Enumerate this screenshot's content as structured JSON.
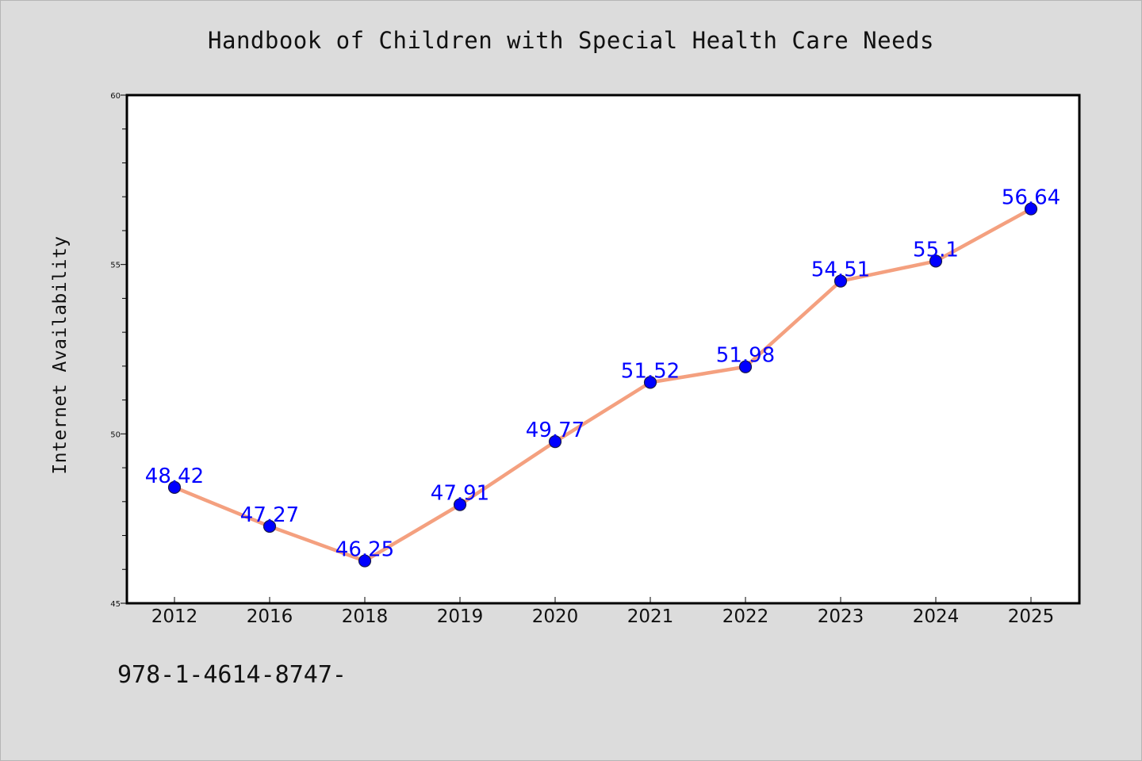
{
  "chart_data": {
    "type": "line",
    "title": "Handbook of Children with Special Health Care Needs",
    "ylabel": "Internet Availability",
    "xlabel": "",
    "categories": [
      "2012",
      "2016",
      "2018",
      "2019",
      "2020",
      "2021",
      "2022",
      "2023",
      "2024",
      "2025"
    ],
    "values": [
      48.42,
      47.27,
      46.25,
      47.91,
      49.77,
      51.52,
      51.98,
      54.51,
      55.1,
      56.64
    ],
    "data_labels": [
      "48.42",
      "47.27",
      "46.25",
      "47.91",
      "49.77",
      "51.52",
      "51.98",
      "54.51",
      "55.1",
      "56.64"
    ],
    "ylim": [
      45,
      60
    ],
    "yticks": [
      "45",
      "50",
      "55",
      "60"
    ],
    "grid": false,
    "legend": "none",
    "colors": {
      "line": "#f4a07f",
      "marker": "#0000ff",
      "marker_edge": "#1a1a4a",
      "label": "#0000ff",
      "plot_bg": "#ffffff",
      "page_bg": "#dcdcdc"
    }
  },
  "footer": {
    "text": "978-1-4614-8747-"
  }
}
